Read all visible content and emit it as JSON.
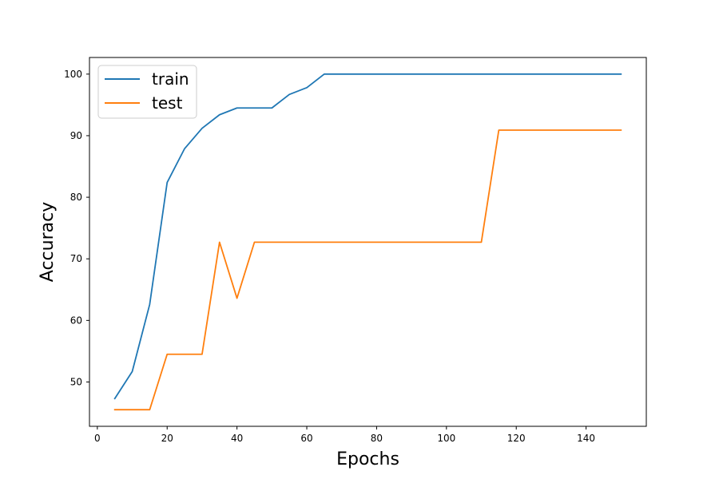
{
  "chart_data": {
    "type": "line",
    "title": "",
    "xlabel": "Epochs",
    "ylabel": "Accuracy",
    "xlim": [
      -2.25,
      157.25
    ],
    "ylim": [
      42.8,
      102.7
    ],
    "xticks": [
      0,
      20,
      40,
      60,
      80,
      100,
      120,
      140
    ],
    "yticks": [
      50,
      60,
      70,
      80,
      90,
      100
    ],
    "grid": false,
    "legend_position": "top-left",
    "series": [
      {
        "name": "train",
        "color": "#1f77b4",
        "points": [
          [
            5,
            47.3
          ],
          [
            10,
            51.7
          ],
          [
            15,
            62.6
          ],
          [
            20,
            82.4
          ],
          [
            25,
            87.9
          ],
          [
            30,
            91.2
          ],
          [
            35,
            93.4
          ],
          [
            40,
            94.5
          ],
          [
            45,
            94.5
          ],
          [
            50,
            94.5
          ],
          [
            55,
            96.7
          ],
          [
            60,
            97.8
          ],
          [
            65,
            100
          ],
          [
            70,
            100
          ],
          [
            75,
            100
          ],
          [
            80,
            100
          ],
          [
            85,
            100
          ],
          [
            90,
            100
          ],
          [
            95,
            100
          ],
          [
            100,
            100
          ],
          [
            105,
            100
          ],
          [
            110,
            100
          ],
          [
            115,
            100
          ],
          [
            120,
            100
          ],
          [
            125,
            100
          ],
          [
            130,
            100
          ],
          [
            135,
            100
          ],
          [
            140,
            100
          ],
          [
            145,
            100
          ],
          [
            150,
            100
          ]
        ]
      },
      {
        "name": "test",
        "color": "#ff7f0e",
        "points": [
          [
            5,
            45.5
          ],
          [
            10,
            45.5
          ],
          [
            15,
            45.5
          ],
          [
            20,
            54.5
          ],
          [
            25,
            54.5
          ],
          [
            30,
            54.5
          ],
          [
            35,
            72.7
          ],
          [
            40,
            63.6
          ],
          [
            45,
            72.7
          ],
          [
            50,
            72.7
          ],
          [
            55,
            72.7
          ],
          [
            60,
            72.7
          ],
          [
            65,
            72.7
          ],
          [
            70,
            72.7
          ],
          [
            75,
            72.7
          ],
          [
            80,
            72.7
          ],
          [
            85,
            72.7
          ],
          [
            90,
            72.7
          ],
          [
            95,
            72.7
          ],
          [
            100,
            72.7
          ],
          [
            105,
            72.7
          ],
          [
            110,
            72.7
          ],
          [
            115,
            90.9
          ],
          [
            120,
            90.9
          ],
          [
            125,
            90.9
          ],
          [
            130,
            90.9
          ],
          [
            135,
            90.9
          ],
          [
            140,
            90.9
          ],
          [
            145,
            90.9
          ],
          [
            150,
            90.9
          ]
        ]
      }
    ]
  }
}
